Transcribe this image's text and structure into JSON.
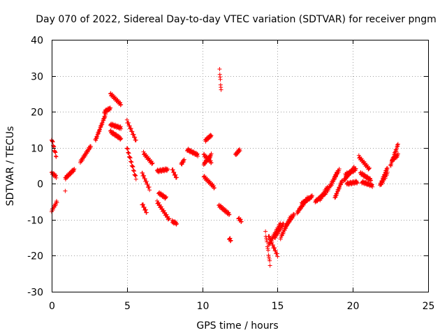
{
  "chart_data": {
    "type": "scatter",
    "title": "Day 070 of 2022, Sidereal Day-to-day VTEC variation (SDTVAR) for receiver pngm",
    "xlabel": "GPS time / hours",
    "ylabel": "SDTVAR / TECUs",
    "xlim": [
      0,
      25
    ],
    "ylim": [
      -30,
      40
    ],
    "xticks": [
      "0",
      "5",
      "10",
      "15",
      "20",
      "25"
    ],
    "yticks": [
      "-30",
      "-20",
      "-10",
      "0",
      "10",
      "20",
      "30",
      "40"
    ],
    "grid": true,
    "marker": "+",
    "series_color": "#ff0000",
    "tracks": [
      {
        "x": [
          0.0,
          0.3
        ],
        "y": [
          12.5,
          7.5
        ]
      },
      {
        "x": [
          0.0,
          0.3
        ],
        "y": [
          3.0,
          2.0
        ]
      },
      {
        "x": [
          0.0,
          0.35
        ],
        "y": [
          -7.5,
          -5.0
        ]
      },
      {
        "x": [
          0.9,
          1.5
        ],
        "y": [
          1.5,
          4.0
        ]
      },
      {
        "x": [
          1.9,
          2.6
        ],
        "y": [
          6.0,
          10.5
        ]
      },
      {
        "x": [
          2.9,
          3.6
        ],
        "y": [
          12.0,
          19.5
        ]
      },
      {
        "x": [
          3.9,
          4.6
        ],
        "y": [
          25.0,
          22.0
        ]
      },
      {
        "x": [
          3.5,
          3.9
        ],
        "y": [
          20.0,
          21.0
        ]
      },
      {
        "x": [
          3.9,
          4.6
        ],
        "y": [
          14.5,
          12.5
        ]
      },
      {
        "x": [
          3.9,
          4.6
        ],
        "y": [
          16.5,
          15.5
        ]
      },
      {
        "x": [
          5.0,
          5.6
        ],
        "y": [
          17.5,
          12.0
        ]
      },
      {
        "x": [
          5.0,
          5.6
        ],
        "y": [
          10.0,
          1.5
        ]
      },
      {
        "x": [
          6.1,
          6.7
        ],
        "y": [
          8.5,
          5.5
        ]
      },
      {
        "x": [
          6.0,
          6.5
        ],
        "y": [
          3.0,
          -1.5
        ]
      },
      {
        "x": [
          6.0,
          6.3
        ],
        "y": [
          -5.5,
          -8.0
        ]
      },
      {
        "x": [
          7.0,
          7.7
        ],
        "y": [
          3.5,
          4.0
        ]
      },
      {
        "x": [
          7.1,
          7.6
        ],
        "y": [
          -2.5,
          -4.0
        ]
      },
      {
        "x": [
          7.0,
          7.8
        ],
        "y": [
          -5.0,
          -10.0
        ]
      },
      {
        "x": [
          8.0,
          8.3
        ],
        "y": [
          4.0,
          1.5
        ]
      },
      {
        "x": [
          8.0,
          8.3
        ],
        "y": [
          -10.5,
          -11.0
        ]
      },
      {
        "x": [
          8.6,
          8.8
        ],
        "y": [
          5.5,
          6.5
        ]
      },
      {
        "x": [
          9.0,
          9.7
        ],
        "y": [
          9.5,
          8.0
        ]
      },
      {
        "x": [
          10.1,
          10.6
        ],
        "y": [
          8.0,
          6.0
        ]
      },
      {
        "x": [
          10.1,
          10.6
        ],
        "y": [
          5.5,
          8.0
        ]
      },
      {
        "x": [
          10.2,
          10.6
        ],
        "y": [
          12.0,
          13.5
        ]
      },
      {
        "x": [
          10.1,
          10.8
        ],
        "y": [
          2.0,
          -1.0
        ]
      },
      {
        "x": [
          11.15,
          11.25
        ],
        "y": [
          31.5,
          26.0
        ]
      },
      {
        "x": [
          11.1,
          11.8
        ],
        "y": [
          -6.0,
          -8.5
        ]
      },
      {
        "x": [
          11.8,
          11.9
        ],
        "y": [
          -15.0,
          -16.0
        ]
      },
      {
        "x": [
          12.2,
          12.5
        ],
        "y": [
          8.0,
          9.5
        ]
      },
      {
        "x": [
          12.4,
          12.6
        ],
        "y": [
          -9.5,
          -10.5
        ]
      },
      {
        "x": [
          14.2,
          14.5
        ],
        "y": [
          -13.5,
          -22.5
        ]
      },
      {
        "x": [
          14.4,
          15.0
        ],
        "y": [
          -14.5,
          -20.0
        ]
      },
      {
        "x": [
          14.4,
          15.2
        ],
        "y": [
          -17.0,
          -11.0
        ]
      },
      {
        "x": [
          14.8,
          15.4
        ],
        "y": [
          -15.0,
          -11.0
        ]
      },
      {
        "x": [
          15.2,
          15.9
        ],
        "y": [
          -15.0,
          -9.0
        ]
      },
      {
        "x": [
          15.5,
          16.1
        ],
        "y": [
          -12.0,
          -8.5
        ]
      },
      {
        "x": [
          16.3,
          17.0
        ],
        "y": [
          -8.0,
          -4.0
        ]
      },
      {
        "x": [
          16.6,
          17.3
        ],
        "y": [
          -5.5,
          -3.5
        ]
      },
      {
        "x": [
          17.5,
          18.2
        ],
        "y": [
          -5.0,
          -2.5
        ]
      },
      {
        "x": [
          17.8,
          18.3
        ],
        "y": [
          -4.5,
          -1.0
        ]
      },
      {
        "x": [
          18.3,
          19.1
        ],
        "y": [
          -2.0,
          4.0
        ]
      },
      {
        "x": [
          18.6,
          19.0
        ],
        "y": [
          0.0,
          3.5
        ]
      },
      {
        "x": [
          18.8,
          19.3
        ],
        "y": [
          -4.0,
          1.0
        ]
      },
      {
        "x": [
          19.4,
          20.1
        ],
        "y": [
          1.0,
          4.5
        ]
      },
      {
        "x": [
          19.5,
          20.2
        ],
        "y": [
          2.5,
          4.0
        ]
      },
      {
        "x": [
          19.6,
          20.3
        ],
        "y": [
          0.0,
          0.5
        ]
      },
      {
        "x": [
          20.4,
          21.1
        ],
        "y": [
          7.5,
          4.0
        ]
      },
      {
        "x": [
          20.5,
          21.2
        ],
        "y": [
          3.0,
          1.0
        ]
      },
      {
        "x": [
          20.6,
          21.3
        ],
        "y": [
          0.5,
          -0.5
        ]
      },
      {
        "x": [
          21.8,
          22.3
        ],
        "y": [
          -0.5,
          4.5
        ]
      },
      {
        "x": [
          21.9,
          22.3
        ],
        "y": [
          0.0,
          3.0
        ]
      },
      {
        "x": [
          22.5,
          23.0
        ],
        "y": [
          5.0,
          11.0
        ]
      },
      {
        "x": [
          22.6,
          23.0
        ],
        "y": [
          6.5,
          8.0
        ]
      }
    ],
    "isolated_points": [
      {
        "x": 0.9,
        "y": -2.0
      },
      {
        "x": 11.8,
        "y": -15.5
      }
    ]
  }
}
